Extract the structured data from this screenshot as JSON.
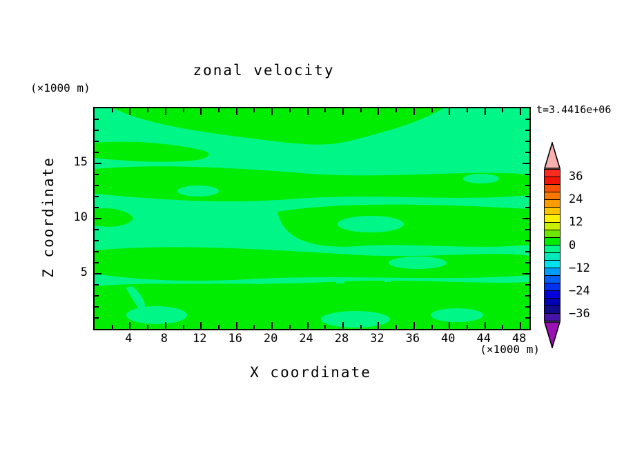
{
  "chart_data": {
    "type": "filled_contour",
    "title": "zonal velocity",
    "time_label": "t=3.4416e+06",
    "xlabel": "X coordinate",
    "ylabel": "Z coordinate",
    "x_unit_label": "(×1000 m)",
    "y_unit_label": "(×1000 m)",
    "x_range": [
      0,
      49
    ],
    "y_range": [
      0,
      20
    ],
    "x_major_ticks": [
      4,
      8,
      12,
      16,
      20,
      24,
      28,
      32,
      36,
      40,
      44,
      48
    ],
    "x_minor_step": 2,
    "y_major_ticks": [
      5,
      10,
      15
    ],
    "y_minor_step": 1,
    "grid": false,
    "field_note": "velocity field values lie within -4..+4, so only the two bands adjacent to 0 appear as horizontally streaked blobs",
    "bands_visible": [
      {
        "range": [
          0,
          4
        ],
        "color": "#00EC00"
      },
      {
        "range": [
          -4,
          0
        ],
        "color": "#00F787"
      }
    ],
    "colorbar": {
      "position": "right",
      "level_min": -40,
      "level_max": 40,
      "level_step": 4,
      "labels": [
        36,
        24,
        12,
        0,
        -12,
        -24,
        -36
      ],
      "over_color": "#F7AFAF",
      "under_color": "#9911B3",
      "segments_top_to_bottom": [
        {
          "range": [
            36,
            40
          ],
          "color": "#FA2C1F"
        },
        {
          "range": [
            32,
            36
          ],
          "color": "#F21505"
        },
        {
          "range": [
            28,
            32
          ],
          "color": "#F95200"
        },
        {
          "range": [
            24,
            28
          ],
          "color": "#FA7800"
        },
        {
          "range": [
            20,
            24
          ],
          "color": "#FA9B00"
        },
        {
          "range": [
            16,
            20
          ],
          "color": "#FCC500"
        },
        {
          "range": [
            12,
            16
          ],
          "color": "#FFF200"
        },
        {
          "range": [
            8,
            12
          ],
          "color": "#C9F000"
        },
        {
          "range": [
            4,
            8
          ],
          "color": "#6FE600"
        },
        {
          "range": [
            0,
            4
          ],
          "color": "#00EC00"
        },
        {
          "range": [
            -4,
            0
          ],
          "color": "#00F787"
        },
        {
          "range": [
            -8,
            -4
          ],
          "color": "#00E9B8"
        },
        {
          "range": [
            -12,
            -8
          ],
          "color": "#00E2F0"
        },
        {
          "range": [
            -16,
            -12
          ],
          "color": "#009CF5"
        },
        {
          "range": [
            -20,
            -16
          ],
          "color": "#0060F5"
        },
        {
          "range": [
            -24,
            -20
          ],
          "color": "#0031F0"
        },
        {
          "range": [
            -28,
            -24
          ],
          "color": "#0000DC"
        },
        {
          "range": [
            -32,
            -28
          ],
          "color": "#0000B4"
        },
        {
          "range": [
            -36,
            -32
          ],
          "color": "#100A8C"
        },
        {
          "range": [
            -40,
            -36
          ],
          "color": "#4513A8"
        }
      ]
    }
  }
}
